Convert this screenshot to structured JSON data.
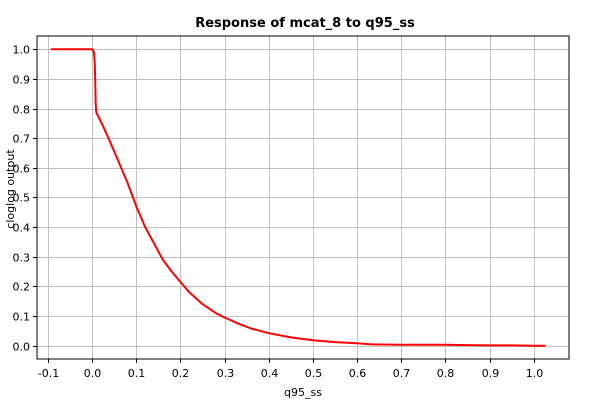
{
  "chart_data": {
    "type": "line",
    "title": "Response of mcat_8 to q95_ss",
    "xlabel": "q95_ss",
    "ylabel": "cloglog output",
    "xlim": [
      -0.125,
      1.08
    ],
    "ylim": [
      -0.045,
      1.045
    ],
    "xticks": [
      -0.1,
      0.0,
      0.1,
      0.2,
      0.3,
      0.4,
      0.5,
      0.6,
      0.7,
      0.8,
      0.9,
      1.0
    ],
    "xtick_labels": [
      "-0.1",
      "0.0",
      "0.1",
      "0.2",
      "0.3",
      "0.4",
      "0.5",
      "0.6",
      "0.7",
      "0.8",
      "0.9",
      "1.0"
    ],
    "yticks": [
      0.0,
      0.1,
      0.2,
      0.3,
      0.4,
      0.5,
      0.6,
      0.7,
      0.8,
      0.9,
      1.0
    ],
    "ytick_labels": [
      "0.0",
      "0.1",
      "0.2",
      "0.3",
      "0.4",
      "0.5",
      "0.6",
      "0.7",
      "0.8",
      "0.9",
      "1.0"
    ],
    "grid": true,
    "series": [
      {
        "color": "#ff0000",
        "x": [
          -0.092,
          0.0,
          0.004,
          0.006,
          0.007,
          0.008,
          0.009,
          0.01,
          0.015,
          0.025,
          0.04,
          0.06,
          0.08,
          0.1,
          0.12,
          0.14,
          0.16,
          0.18,
          0.2,
          0.22,
          0.25,
          0.28,
          0.3,
          0.33,
          0.36,
          0.4,
          0.45,
          0.5,
          0.55,
          0.6,
          0.63,
          0.65,
          0.7,
          0.75,
          0.8,
          0.85,
          0.9,
          0.95,
          1.0,
          1.025
        ],
        "y": [
          1.0,
          1.0,
          0.99,
          0.95,
          0.88,
          0.82,
          0.79,
          0.785,
          0.77,
          0.74,
          0.69,
          0.62,
          0.55,
          0.47,
          0.4,
          0.345,
          0.29,
          0.25,
          0.215,
          0.18,
          0.14,
          0.11,
          0.095,
          0.075,
          0.058,
          0.042,
          0.028,
          0.018,
          0.012,
          0.008,
          0.005,
          0.004,
          0.003,
          0.003,
          0.003,
          0.002,
          0.001,
          0.001,
          0.0,
          0.0
        ]
      }
    ],
    "colors": {
      "background": "#ffffff",
      "frame": "#000000",
      "grid": "#c0c0c0",
      "line": "#ff0000"
    }
  }
}
